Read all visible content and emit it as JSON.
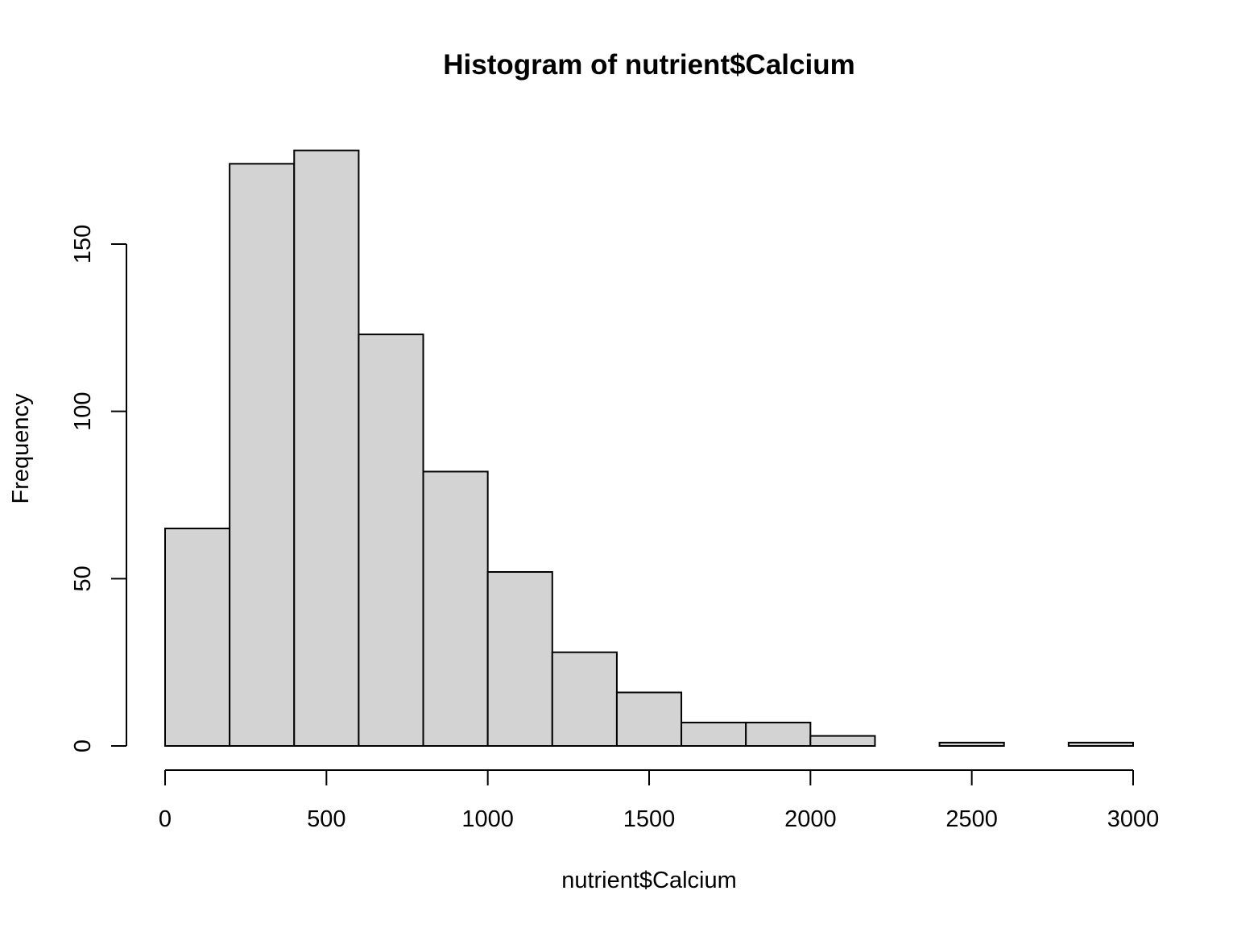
{
  "chart_data": {
    "type": "bar",
    "title": "Histogram of nutrient$Calcium",
    "xlabel": "nutrient$Calcium",
    "ylabel": "Frequency",
    "bin_edges": [
      0,
      200,
      400,
      600,
      800,
      1000,
      1200,
      1400,
      1600,
      1800,
      2000,
      2200,
      2400,
      2600,
      2800,
      3000
    ],
    "values": [
      65,
      174,
      178,
      123,
      82,
      52,
      28,
      16,
      7,
      7,
      3,
      0,
      1,
      0,
      1
    ],
    "xlim": [
      0,
      3000
    ],
    "ylim": [
      0,
      178
    ],
    "x_ticks": [
      0,
      500,
      1000,
      1500,
      2000,
      2500,
      3000
    ],
    "y_ticks": [
      0,
      50,
      100,
      150
    ],
    "bar_color": "#d3d3d3",
    "grid": false,
    "legend": "none"
  }
}
